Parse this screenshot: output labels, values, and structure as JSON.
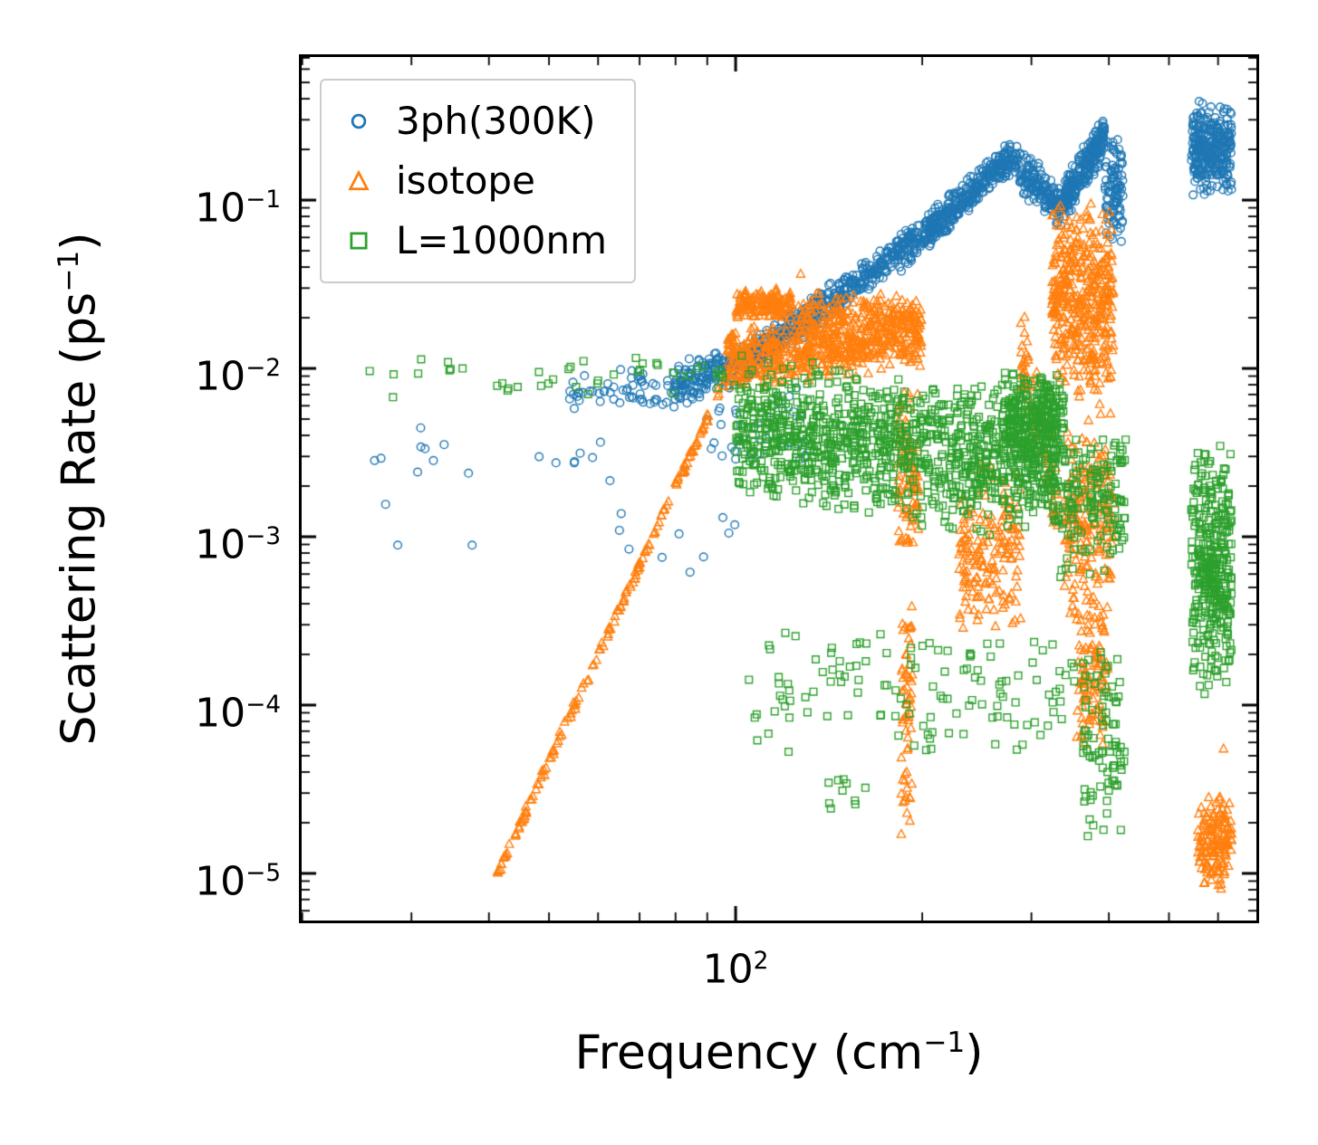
{
  "chart_data": {
    "type": "scatter",
    "title": "",
    "xlabel": "Frequency (cm⁻¹)",
    "ylabel": "Scattering Rate (ps⁻¹)",
    "xlabel_parts": {
      "pre": "Frequency (cm",
      "sup": "−1",
      "post": ")"
    },
    "ylabel_parts": {
      "pre": "Scattering Rate (ps",
      "sup": "−1",
      "post": ")"
    },
    "xscale": "log",
    "yscale": "log",
    "grid": false,
    "background": "#ffffff",
    "axes_color": "#000000",
    "legend_position": "upper-left",
    "legend_border_color": "#cccccc",
    "xlim_log": [
      1.3,
      2.84
    ],
    "ylim_log": [
      -5.28,
      -0.15
    ],
    "xlim": [
      20,
      692
    ],
    "ylim": [
      5.2e-06,
      0.71
    ],
    "xticks": [
      {
        "log": 2,
        "base": "10",
        "exp": "2"
      }
    ],
    "yticks": [
      {
        "log": -1,
        "base": "10",
        "exp": "−1"
      },
      {
        "log": -2,
        "base": "10",
        "exp": "−2"
      },
      {
        "log": -3,
        "base": "10",
        "exp": "−3"
      },
      {
        "log": -4,
        "base": "10",
        "exp": "−4"
      },
      {
        "log": -5,
        "base": "10",
        "exp": "−5"
      }
    ],
    "series": [
      {
        "name": "3ph(300K)",
        "marker": "circle",
        "color": "#1f77b4",
        "seed": 11,
        "clusters": [
          {
            "n": 10,
            "x": [
              1.4,
              1.62
            ],
            "y": [
              -2.6,
              -2.6
            ],
            "s": 0.38
          },
          {
            "n": 8,
            "x": [
              1.68,
              1.8
            ],
            "y": [
              -2.5,
              -2.5
            ],
            "s": 0.3
          },
          {
            "n": 60,
            "x": [
              1.72,
              1.92
            ],
            "y": [
              -2.15,
              -2.1
            ],
            "s": 0.13
          },
          {
            "n": 10,
            "x": [
              1.8,
              2.0
            ],
            "y": [
              -2.9,
              -2.9
            ],
            "s": 0.35
          },
          {
            "n": 150,
            "x": [
              1.9,
              2.02
            ],
            "y": [
              -2.1,
              -1.95
            ],
            "s": 0.14
          },
          {
            "n": 40,
            "x": [
              1.95,
              2.12
            ],
            "y": [
              -2.35,
              -2.35
            ],
            "s": 0.25
          },
          {
            "n": 450,
            "x": [
              2.02,
              2.3
            ],
            "y": [
              -1.95,
              -1.22
            ],
            "s": 0.12
          },
          {
            "n": 350,
            "x": [
              2.3,
              2.45
            ],
            "y": [
              -1.22,
              -0.73
            ],
            "s": 0.12
          },
          {
            "n": 180,
            "x": [
              2.45,
              2.53
            ],
            "y": [
              -0.8,
              -1.05
            ],
            "s": 0.14
          },
          {
            "n": 250,
            "x": [
              2.53,
              2.595
            ],
            "y": [
              -1.0,
              -0.62
            ],
            "s": 0.14
          },
          {
            "n": 100,
            "x": [
              2.595,
              2.625
            ],
            "y": [
              -0.95,
              -0.95
            ],
            "s": 0.35
          },
          {
            "n": 300,
            "x": [
              2.735,
              2.8
            ],
            "y": [
              -0.7,
              -0.7
            ],
            "s": 0.3
          }
        ],
        "extra": [
          [
            1.455,
            -3.05
          ],
          [
            1.575,
            -3.05
          ]
        ]
      },
      {
        "name": "isotope",
        "marker": "triangle",
        "color": "#ff7f0e",
        "seed": 22,
        "clusters": [
          {
            "n": 170,
            "x": [
              1.615,
              1.985
            ],
            "y": [
              -5.0,
              -2.05
            ],
            "s": 0.035
          },
          {
            "n": 600,
            "x": [
              1.985,
              2.3
            ],
            "y": [
              -1.95,
              -1.8
            ],
            "s": 0.2
          },
          {
            "n": 140,
            "x": [
              2.0,
              2.09
            ],
            "y": [
              -1.62,
              -1.62
            ],
            "s": 0.1
          },
          {
            "n": 120,
            "x": [
              2.1,
              2.3
            ],
            "y": [
              -1.66,
              -1.66
            ],
            "s": 0.12
          },
          {
            "n": 90,
            "x": [
              2.26,
              2.295
            ],
            "y": [
              -2.6,
              -2.6
            ],
            "s": 0.55
          },
          {
            "n": 60,
            "x": [
              2.267,
              2.285
            ],
            "y": [
              -4.0,
              -4.0
            ],
            "s": 0.85
          },
          {
            "n": 170,
            "x": [
              2.36,
              2.46
            ],
            "y": [
              -3.1,
              -3.1
            ],
            "s": 0.55
          },
          {
            "n": 80,
            "x": [
              2.46,
              2.52
            ],
            "y": [
              -1.9,
              -2.8
            ],
            "s": 0.3
          },
          {
            "n": 420,
            "x": [
              2.51,
              2.61
            ],
            "y": [
              -1.6,
              -1.6
            ],
            "s": 0.62
          },
          {
            "n": 200,
            "x": [
              2.53,
              2.61
            ],
            "y": [
              -2.9,
              -2.9
            ],
            "s": 0.7
          },
          {
            "n": 100,
            "x": [
              2.55,
              2.6
            ],
            "y": [
              -3.8,
              -3.8
            ],
            "s": 0.5
          },
          {
            "n": 150,
            "x": [
              2.745,
              2.8
            ],
            "y": [
              -4.8,
              -4.8
            ],
            "s": 0.3
          }
        ],
        "extra": [
          [
            2.105,
            -1.44
          ],
          [
            2.787,
            -4.26
          ]
        ]
      },
      {
        "name": "L=1000nm",
        "marker": "square",
        "color": "#2ca02c",
        "seed": 33,
        "clusters": [
          {
            "n": 45,
            "x": [
              1.4,
              2.0
            ],
            "y": [
              -2.05,
              -2.05
            ],
            "s": 0.13
          },
          {
            "n": 1100,
            "x": [
              2.0,
              2.52
            ],
            "y": [
              -2.35,
              -2.6
            ],
            "s": 0.45
          },
          {
            "n": 280,
            "x": [
              2.43,
              2.53
            ],
            "y": [
              -2.3,
              -2.3
            ],
            "s": 0.3
          },
          {
            "n": 150,
            "x": [
              2.52,
              2.63
            ],
            "y": [
              -2.8,
              -2.8
            ],
            "s": 0.5
          },
          {
            "n": 120,
            "x": [
              2.05,
              2.55
            ],
            "y": [
              -3.9,
              -3.9
            ],
            "s": 0.45
          },
          {
            "n": 90,
            "x": [
              2.56,
              2.63
            ],
            "y": [
              -4.3,
              -4.3
            ],
            "s": 0.75
          },
          {
            "n": 10,
            "x": [
              2.15,
              2.22
            ],
            "y": [
              -4.5,
              -4.5
            ],
            "s": 0.15
          },
          {
            "n": 8,
            "x": [
              2.02,
              2.1
            ],
            "y": [
              -4.0,
              -4.0
            ],
            "s": 0.3
          },
          {
            "n": 350,
            "x": [
              2.735,
              2.8
            ],
            "y": [
              -3.2,
              -3.2
            ],
            "s": 0.75
          },
          {
            "n": 6,
            "x": [
              2.74,
              2.79
            ],
            "y": [
              -2.55,
              -2.55
            ],
            "s": 0.1
          }
        ],
        "extra": [
          [
            2.035,
            -4.21
          ]
        ]
      }
    ]
  }
}
